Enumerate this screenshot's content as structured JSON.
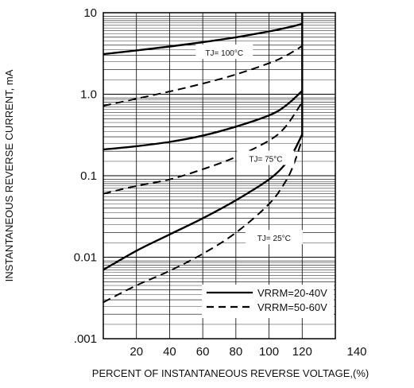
{
  "chart_data": {
    "type": "line",
    "title": "",
    "xlabel": "PERCENT OF INSTANTANEOUS REVERSE VOLTAGE,(%)",
    "ylabel": "INSTANTANEOUS REVERSE CURRENT, mA",
    "xlim": [
      0,
      140
    ],
    "ylim": [
      0.001,
      10
    ],
    "yscale": "log",
    "grid": true,
    "x_ticks": [
      20,
      40,
      60,
      80,
      100,
      120,
      140
    ],
    "x_tick_labels": [
      "20",
      "40",
      "60",
      "80",
      "100",
      "120",
      "140"
    ],
    "y_ticks": [
      0.001,
      0.01,
      0.1,
      1.0,
      10
    ],
    "y_tick_labels": [
      ".001",
      "0.01",
      "0.1",
      "1.0",
      "10"
    ],
    "legend": {
      "placement": "bottom-right",
      "entries": [
        {
          "label": "VRRM=20-40V",
          "style": "solid"
        },
        {
          "label": "VRRM=50-60V",
          "style": "dashed"
        }
      ]
    },
    "annotations": [
      {
        "label": "TJ= 100°C",
        "x": 73,
        "y": 3.1
      },
      {
        "label": "TJ= 75°C",
        "x": 98,
        "y": 0.155
      },
      {
        "label": "TJ= 25°C",
        "x": 103,
        "y": 0.0165
      }
    ],
    "series": [
      {
        "temperature": "100°C",
        "style": "solid",
        "x": [
          0,
          20,
          40,
          60,
          80,
          100,
          110,
          120
        ],
        "y": [
          3.1,
          3.45,
          3.85,
          4.35,
          5.0,
          5.9,
          6.5,
          7.3
        ]
      },
      {
        "temperature": "100°C",
        "style": "dashed",
        "x": [
          0,
          20,
          40,
          60,
          80,
          100,
          110,
          120
        ],
        "y": [
          0.72,
          0.88,
          1.08,
          1.35,
          1.75,
          2.4,
          2.95,
          3.9
        ]
      },
      {
        "temperature": "75°C",
        "style": "solid",
        "x": [
          0,
          20,
          40,
          60,
          80,
          100,
          110,
          120
        ],
        "y": [
          0.21,
          0.23,
          0.26,
          0.31,
          0.4,
          0.55,
          0.72,
          1.1
        ]
      },
      {
        "temperature": "75°C",
        "style": "dashed",
        "x": [
          0,
          20,
          40,
          60,
          80,
          100,
          110,
          120
        ],
        "y": [
          0.06,
          0.075,
          0.09,
          0.12,
          0.17,
          0.27,
          0.4,
          0.8
        ]
      },
      {
        "temperature": "25°C",
        "style": "solid",
        "x": [
          0,
          20,
          40,
          60,
          80,
          100,
          110,
          115,
          120
        ],
        "y": [
          0.007,
          0.012,
          0.019,
          0.03,
          0.05,
          0.09,
          0.14,
          0.2,
          0.32
        ]
      },
      {
        "temperature": "25°C",
        "style": "dashed",
        "x": [
          0,
          20,
          40,
          60,
          80,
          100,
          110,
          115,
          120
        ],
        "y": [
          0.0028,
          0.0045,
          0.0068,
          0.011,
          0.02,
          0.045,
          0.085,
          0.14,
          0.28
        ]
      },
      {
        "temperature": "all",
        "style": "solid",
        "x": [
          120,
          120
        ],
        "y": [
          0.3,
          10
        ]
      }
    ]
  }
}
